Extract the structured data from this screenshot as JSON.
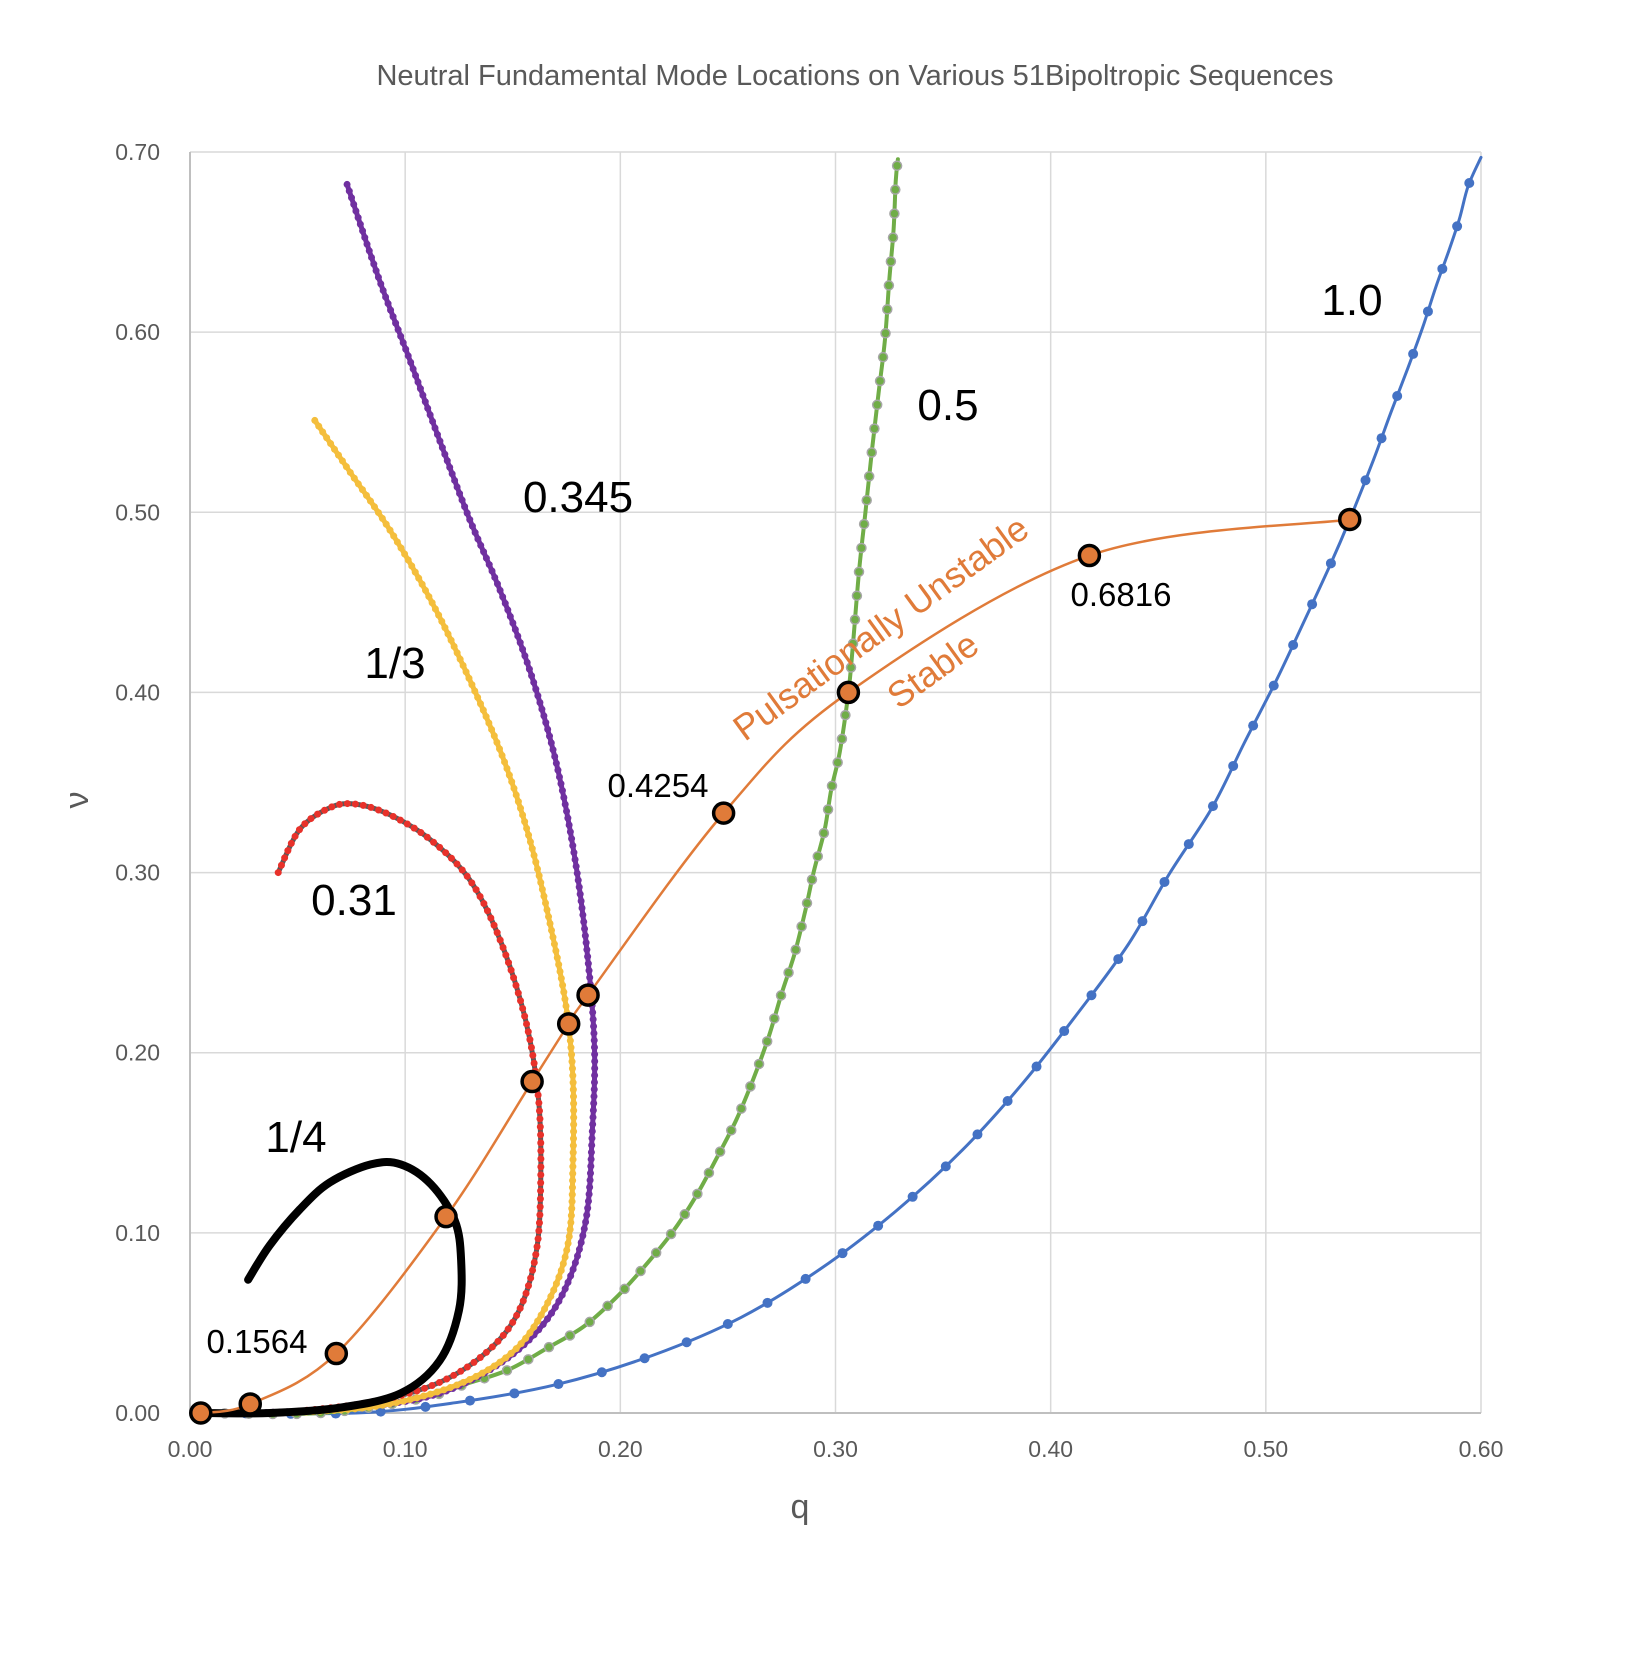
{
  "chart_data": {
    "type": "line",
    "title": "Neutral Fundamental Mode Locations on Various 51Bipoltropic Sequences",
    "xlabel": "q",
    "ylabel": "ν",
    "xlim": [
      0,
      0.6
    ],
    "ylim": [
      0,
      0.7
    ],
    "xticks": [
      "0.00",
      "0.10",
      "0.20",
      "0.30",
      "0.40",
      "0.50",
      "0.60"
    ],
    "yticks": [
      "0.00",
      "0.10",
      "0.20",
      "0.30",
      "0.40",
      "0.50",
      "0.60",
      "0.70"
    ],
    "grid": true,
    "series": [
      {
        "name": "1.0",
        "color": "#4472C4",
        "points": [
          [
            0.005,
            0
          ],
          [
            0.077,
            0.0
          ],
          [
            0.125,
            0.006
          ],
          [
            0.171,
            0.016
          ],
          [
            0.215,
            0.032
          ],
          [
            0.256,
            0.053
          ],
          [
            0.293,
            0.08
          ],
          [
            0.328,
            0.112
          ],
          [
            0.359,
            0.146
          ],
          [
            0.387,
            0.183
          ],
          [
            0.412,
            0.221
          ],
          [
            0.436,
            0.26
          ],
          [
            0.455,
            0.299
          ],
          [
            0.475,
            0.336
          ],
          [
            0.49,
            0.372
          ],
          [
            0.505,
            0.407
          ],
          [
            0.518,
            0.44
          ],
          [
            0.53,
            0.471
          ],
          [
            0.539,
            0.496
          ],
          [
            0.55,
            0.529
          ],
          [
            0.558,
            0.555
          ],
          [
            0.566,
            0.58
          ],
          [
            0.573,
            0.603
          ],
          [
            0.579,
            0.625
          ],
          [
            0.585,
            0.645
          ],
          [
            0.59,
            0.663
          ],
          [
            0.594,
            0.681
          ],
          [
            0.6,
            0.697
          ]
        ]
      },
      {
        "name": "0.5",
        "color": "#70AD47",
        "points": [
          [
            0.005,
            0
          ],
          [
            0.061,
            0.0
          ],
          [
            0.107,
            0.008
          ],
          [
            0.128,
            0.016
          ],
          [
            0.148,
            0.024
          ],
          [
            0.166,
            0.036
          ],
          [
            0.183,
            0.048
          ],
          [
            0.198,
            0.064
          ],
          [
            0.211,
            0.081
          ],
          [
            0.224,
            0.1
          ],
          [
            0.235,
            0.12
          ],
          [
            0.245,
            0.142
          ],
          [
            0.254,
            0.163
          ],
          [
            0.262,
            0.186
          ],
          [
            0.269,
            0.209
          ],
          [
            0.275,
            0.233
          ],
          [
            0.281,
            0.255
          ],
          [
            0.286,
            0.279
          ],
          [
            0.29,
            0.301
          ],
          [
            0.295,
            0.324
          ],
          [
            0.298,
            0.346
          ],
          [
            0.302,
            0.367
          ],
          [
            0.306,
            0.4
          ],
          [
            0.308,
            0.425
          ],
          [
            0.311,
            0.468
          ],
          [
            0.314,
            0.501
          ],
          [
            0.317,
            0.535
          ],
          [
            0.32,
            0.566
          ],
          [
            0.323,
            0.596
          ],
          [
            0.325,
            0.629
          ],
          [
            0.327,
            0.657
          ],
          [
            0.328,
            0.684
          ],
          [
            0.329,
            0.696
          ]
        ]
      },
      {
        "name": "0.345",
        "color": "#7030A0",
        "points": [
          [
            0.073,
            0.682
          ],
          [
            0.088,
            0.629
          ],
          [
            0.102,
            0.585
          ],
          [
            0.116,
            0.54
          ],
          [
            0.13,
            0.496
          ],
          [
            0.144,
            0.457
          ],
          [
            0.158,
            0.412
          ],
          [
            0.17,
            0.362
          ],
          [
            0.179,
            0.307
          ],
          [
            0.185,
            0.251
          ],
          [
            0.188,
            0.202
          ],
          [
            0.187,
            0.157
          ],
          [
            0.184,
            0.107
          ],
          [
            0.174,
            0.068
          ],
          [
            0.158,
            0.041
          ],
          [
            0.135,
            0.021
          ],
          [
            0.107,
            0.008
          ],
          [
            0.065,
            0.002
          ],
          [
            0.028,
            0.0
          ]
        ]
      },
      {
        "name": "1/3",
        "color": "#F4BE3C",
        "points": [
          [
            0.058,
            0.551
          ],
          [
            0.074,
            0.523
          ],
          [
            0.093,
            0.49
          ],
          [
            0.112,
            0.451
          ],
          [
            0.13,
            0.407
          ],
          [
            0.146,
            0.362
          ],
          [
            0.158,
            0.318
          ],
          [
            0.168,
            0.268
          ],
          [
            0.175,
            0.224
          ],
          [
            0.178,
            0.185
          ],
          [
            0.178,
            0.14
          ],
          [
            0.176,
            0.096
          ],
          [
            0.167,
            0.063
          ],
          [
            0.151,
            0.035
          ],
          [
            0.125,
            0.016
          ],
          [
            0.088,
            0.004
          ],
          [
            0.046,
            0.0
          ]
        ]
      },
      {
        "name": "0.31",
        "color": "#E8312A",
        "points": [
          [
            0.041,
            0.3
          ],
          [
            0.051,
            0.324
          ],
          [
            0.065,
            0.336
          ],
          [
            0.077,
            0.338
          ],
          [
            0.093,
            0.332
          ],
          [
            0.112,
            0.318
          ],
          [
            0.13,
            0.296
          ],
          [
            0.144,
            0.263
          ],
          [
            0.156,
            0.218
          ],
          [
            0.162,
            0.174
          ],
          [
            0.163,
            0.129
          ],
          [
            0.161,
            0.09
          ],
          [
            0.153,
            0.057
          ],
          [
            0.139,
            0.035
          ],
          [
            0.116,
            0.017
          ],
          [
            0.084,
            0.006
          ],
          [
            0.042,
            0.0
          ]
        ]
      },
      {
        "name": "1/4",
        "color": "#000000",
        "points": [
          [
            0.027,
            0.074
          ],
          [
            0.037,
            0.093
          ],
          [
            0.051,
            0.113
          ],
          [
            0.065,
            0.128
          ],
          [
            0.084,
            0.138
          ],
          [
            0.098,
            0.138
          ],
          [
            0.112,
            0.127
          ],
          [
            0.123,
            0.107
          ],
          [
            0.126,
            0.085
          ],
          [
            0.125,
            0.057
          ],
          [
            0.116,
            0.029
          ],
          [
            0.098,
            0.011
          ],
          [
            0.07,
            0.003
          ],
          [
            0.037,
            0.0
          ],
          [
            0.005,
            0.0
          ]
        ]
      }
    ],
    "neutral_mode": {
      "name": "Neutral fundamental mode",
      "color": "#E07B39",
      "points": [
        [
          0.005,
          0.0
        ],
        [
          0.028,
          0.005
        ],
        [
          0.068,
          0.033
        ],
        [
          0.119,
          0.109
        ],
        [
          0.159,
          0.184
        ],
        [
          0.176,
          0.216
        ],
        [
          0.185,
          0.232
        ],
        [
          0.248,
          0.333
        ],
        [
          0.306,
          0.4
        ],
        [
          0.418,
          0.476
        ],
        [
          0.539,
          0.496
        ]
      ]
    },
    "point_labels": [
      "0.1564",
      "0.4254",
      "0.6816"
    ],
    "annotations": [
      "Pulsationally Unstable",
      "Stable"
    ]
  }
}
